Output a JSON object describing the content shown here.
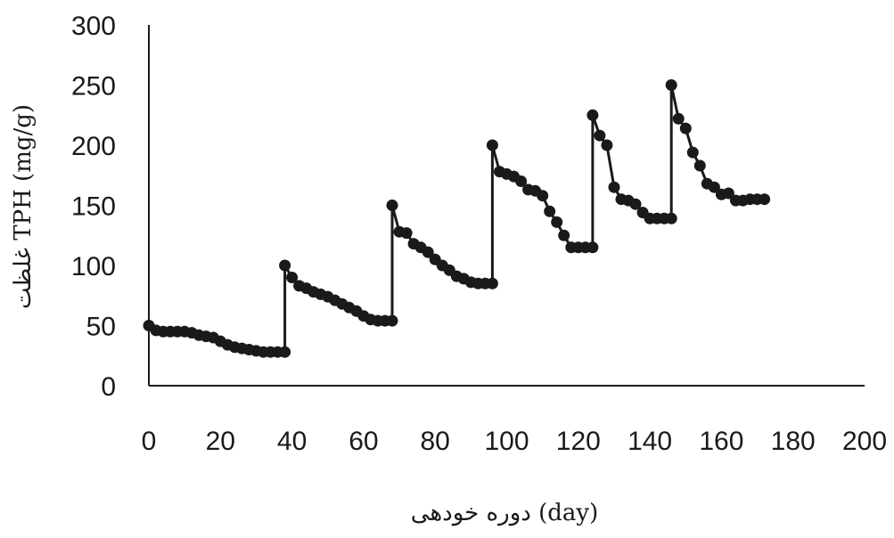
{
  "chart_data": {
    "type": "line",
    "title": "",
    "xlabel": "دوره خودهی (day)",
    "ylabel": "غلظت TPH (mg/g)",
    "xlim": [
      0,
      200
    ],
    "ylim": [
      0,
      300
    ],
    "xticks": [
      "0",
      "20",
      "40",
      "60",
      "80",
      "100",
      "120",
      "140",
      "160",
      "180",
      "200"
    ],
    "yticks": [
      "0",
      "50",
      "100",
      "150",
      "200",
      "250",
      "300"
    ],
    "grid": false,
    "legend": "none",
    "series": [
      {
        "color": "#1a1a1a",
        "marker": "circle",
        "x": [
          0,
          2,
          4,
          6,
          8,
          10,
          12,
          14,
          16,
          18,
          20,
          22,
          24,
          26,
          28,
          30,
          32,
          34,
          36,
          38,
          38,
          40,
          42,
          44,
          46,
          48,
          50,
          52,
          54,
          56,
          58,
          60,
          62,
          64,
          66,
          68,
          68,
          70,
          72,
          74,
          76,
          78,
          80,
          82,
          84,
          86,
          88,
          90,
          92,
          94,
          96,
          96,
          98,
          100,
          102,
          104,
          106,
          108,
          110,
          112,
          114,
          116,
          118,
          120,
          122,
          124,
          124,
          126,
          128,
          130,
          132,
          134,
          136,
          138,
          140,
          142,
          144,
          146,
          146,
          148,
          150,
          152,
          154,
          156,
          158,
          160,
          162,
          164,
          166,
          168,
          170,
          172
        ],
        "y": [
          50,
          46,
          45,
          45,
          45,
          45,
          44,
          42,
          41,
          40,
          37,
          34,
          32,
          31,
          30,
          29,
          28,
          28,
          28,
          28,
          100,
          90,
          83,
          81,
          78,
          76,
          74,
          71,
          68,
          65,
          62,
          58,
          55,
          54,
          54,
          54,
          150,
          128,
          127,
          118,
          115,
          111,
          105,
          100,
          96,
          91,
          89,
          86,
          85,
          85,
          85,
          200,
          178,
          176,
          174,
          170,
          163,
          162,
          158,
          145,
          136,
          125,
          115,
          115,
          115,
          115,
          225,
          208,
          200,
          165,
          155,
          154,
          151,
          144,
          139,
          139,
          139,
          139,
          250,
          222,
          214,
          194,
          183,
          168,
          165,
          159,
          160,
          154,
          154,
          155,
          155,
          155
        ]
      }
    ]
  }
}
